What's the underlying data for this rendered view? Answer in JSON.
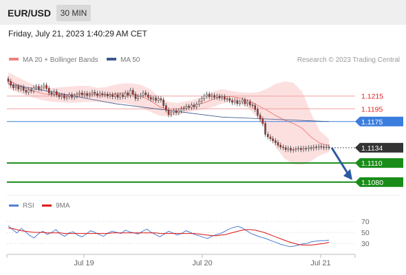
{
  "header": {
    "symbol": "EUR/USD",
    "timeframe": "30 MIN",
    "datetime": "Friday, July 21, 2023 1:40:29 AM CET"
  },
  "legend": {
    "ma20_label": "MA 20 + Bollinger Bands",
    "ma50_label": "MA 50",
    "credit": "Research © 2023 Trading Central",
    "ma20_color": "#f08080",
    "ma50_color": "#3a5a8c"
  },
  "colors": {
    "support": "#198c19",
    "resistance": "#f0a0a0",
    "pivot": "#3b7ddd",
    "current": "#333333",
    "candle_up": "#ffffff",
    "candle_down": "#cc2222",
    "arrow": "#2c5aa0"
  },
  "chart_data": [
    {
      "type": "candlestick",
      "ylim": [
        1.1068,
        1.126
      ],
      "x_tick_labels": [
        "Jul 19",
        "Jul 20",
        "Jul 21"
      ],
      "closes": [
        1.1238,
        1.1232,
        1.1228,
        1.123,
        1.1226,
        1.1229,
        1.1224,
        1.1221,
        1.1225,
        1.1223,
        1.1228,
        1.123,
        1.1226,
        1.1229,
        1.1232,
        1.1227,
        1.122,
        1.1218,
        1.1222,
        1.1217,
        1.1214,
        1.1216,
        1.1212,
        1.1214,
        1.1217,
        1.1213,
        1.1215,
        1.1218,
        1.122,
        1.1217,
        1.1219,
        1.1216,
        1.1218,
        1.1221,
        1.1219,
        1.1216,
        1.1219,
        1.1217,
        1.1218,
        1.1215,
        1.1217,
        1.1214,
        1.1217,
        1.1213,
        1.1217,
        1.1214,
        1.122,
        1.1216,
        1.1224,
        1.1218,
        1.1211,
        1.1214,
        1.1216,
        1.122,
        1.1217,
        1.1213,
        1.121,
        1.1212,
        1.1208,
        1.1211,
        1.1209,
        1.12,
        1.1193,
        1.1186,
        1.1189,
        1.1192,
        1.1189,
        1.1192,
        1.1195,
        1.1196,
        1.1199,
        1.1197,
        1.1201,
        1.1198,
        1.1202,
        1.1207,
        1.1211,
        1.1215,
        1.1218,
        1.1214,
        1.1216,
        1.1213,
        1.1215,
        1.1212,
        1.1214,
        1.121,
        1.1211,
        1.1208,
        1.1205,
        1.1208,
        1.1203,
        1.1206,
        1.1209,
        1.1203,
        1.1206,
        1.1201,
        1.12,
        1.1194,
        1.1185,
        1.1179,
        1.1172,
        1.1155,
        1.1151,
        1.1148,
        1.1145,
        1.1142,
        1.1138,
        1.1135,
        1.1134,
        1.1131,
        1.1133,
        1.113,
        1.1131,
        1.1132,
        1.1133,
        1.1131,
        1.1133,
        1.1132,
        1.1134,
        1.1133,
        1.1135,
        1.1134,
        1.1136,
        1.1135,
        1.1134,
        1.1135,
        1.1134
      ],
      "ma50_path": [
        1.1234,
        1.1203,
        1.1182,
        1.1175
      ],
      "bollinger": {
        "upper": [
          1.1252,
          1.1245,
          1.1238,
          1.1232,
          1.1229,
          1.1228,
          1.1229,
          1.123,
          1.1231,
          1.1231,
          1.1228,
          1.1229,
          1.1233,
          1.1235,
          1.1235,
          1.1232,
          1.1225,
          1.1212,
          1.1206,
          1.1204,
          1.1207,
          1.121,
          1.1215,
          1.1222,
          1.1226,
          1.1223,
          1.1221,
          1.122,
          1.1221,
          1.1226,
          1.1234,
          1.1238,
          1.1236,
          1.1222,
          1.1188,
          1.116,
          1.1148
        ],
        "lower": [
          1.1227,
          1.1221,
          1.1216,
          1.1212,
          1.1208,
          1.1206,
          1.1205,
          1.1204,
          1.1205,
          1.1206,
          1.1206,
          1.1205,
          1.1204,
          1.1204,
          1.1201,
          1.1196,
          1.119,
          1.1184,
          1.1183,
          1.1185,
          1.1189,
          1.1192,
          1.1194,
          1.1198,
          1.1203,
          1.1206,
          1.1203,
          1.1196,
          1.118,
          1.116,
          1.1135,
          1.1117,
          1.1108,
          1.1107,
          1.1113,
          1.1122,
          1.1127
        ]
      },
      "levels": [
        {
          "name": "resistance-1215",
          "value": 1.1215,
          "label": "1.1215",
          "kind": "resistance"
        },
        {
          "name": "resistance-1195",
          "value": 1.1195,
          "label": "1.1195",
          "kind": "resistance"
        },
        {
          "name": "pivot-1175",
          "value": 1.1175,
          "label": "1.1175",
          "kind": "pivot"
        },
        {
          "name": "last-1134",
          "value": 1.1134,
          "label": "1.1134",
          "kind": "current"
        },
        {
          "name": "support-1110",
          "value": 1.111,
          "label": "1.1110",
          "kind": "support"
        },
        {
          "name": "support-1080",
          "value": 1.108,
          "label": "1.1080",
          "kind": "support"
        }
      ]
    },
    {
      "type": "line",
      "legend": [
        "RSI",
        "9MA"
      ],
      "series_colors": {
        "RSI": "#4a7bd0",
        "9MA": "#dd1111"
      },
      "ylim": [
        15,
        85
      ],
      "y_tick_labels": [
        "70",
        "50",
        "30"
      ],
      "y_ticks": [
        70,
        50,
        30
      ],
      "series": [
        {
          "name": "RSI",
          "values": [
            62,
            55,
            49,
            57,
            51,
            44,
            40,
            48,
            52,
            46,
            50,
            55,
            47,
            43,
            49,
            51,
            45,
            42,
            47,
            53,
            50,
            46,
            43,
            49,
            52,
            50,
            48,
            54,
            51,
            49,
            47,
            52,
            56,
            50,
            46,
            42,
            47,
            52,
            49,
            45,
            48,
            53,
            50,
            46,
            44,
            41,
            39,
            43,
            46,
            48,
            52,
            56,
            59,
            61,
            58,
            53,
            48,
            45,
            42,
            40,
            37,
            34,
            31,
            28,
            26,
            24,
            25,
            27,
            29,
            30,
            33,
            34,
            35,
            35,
            36
          ]
        },
        {
          "name": "9MA",
          "values": [
            58,
            57,
            55,
            53,
            52,
            51,
            50,
            50,
            50,
            49,
            49,
            49,
            49,
            48,
            48,
            48,
            48,
            48,
            48,
            48,
            48,
            48,
            48,
            48,
            49,
            49,
            49,
            49,
            49,
            49,
            49,
            49,
            49,
            49,
            49,
            48,
            48,
            48,
            48,
            48,
            48,
            48,
            48,
            48,
            47,
            46,
            45,
            44,
            44,
            45,
            46,
            48,
            50,
            52,
            54,
            55,
            55,
            54,
            52,
            50,
            47,
            44,
            41,
            38,
            35,
            32,
            30,
            28,
            27,
            27,
            27,
            28,
            29,
            30,
            32
          ]
        }
      ]
    }
  ]
}
